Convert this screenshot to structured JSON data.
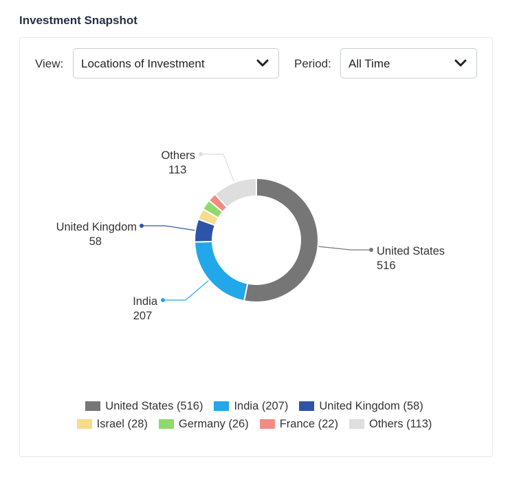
{
  "header": {
    "title": "Investment Snapshot"
  },
  "filters": {
    "view_label": "View:",
    "view_value": "Locations of Investment",
    "period_label": "Period:",
    "period_value": "All Time"
  },
  "chart_data": {
    "type": "pie",
    "donut": true,
    "slices": [
      {
        "label": "United States",
        "value": 516,
        "color": "#767676"
      },
      {
        "label": "India",
        "value": 207,
        "color": "#22a7e8"
      },
      {
        "label": "United Kingdom",
        "value": 58,
        "color": "#2e54a8"
      },
      {
        "label": "Israel",
        "value": 28,
        "color": "#f7dc8c"
      },
      {
        "label": "Germany",
        "value": 26,
        "color": "#8fda6e"
      },
      {
        "label": "France",
        "value": 22,
        "color": "#f28b82"
      },
      {
        "label": "Others",
        "value": 113,
        "color": "#dedede"
      }
    ],
    "callouts": [
      {
        "name": "United States",
        "value": "516"
      },
      {
        "name": "India",
        "value": "207"
      },
      {
        "name": "United Kingdom",
        "value": "58"
      },
      {
        "name": "Others",
        "value": "113"
      }
    ],
    "legend": [
      [
        "United States (516)",
        "India (207)",
        "United Kingdom (58)"
      ],
      [
        "Israel (28)",
        "Germany (26)",
        "France (22)",
        "Others (113)"
      ]
    ],
    "legend_position": "bottom"
  }
}
